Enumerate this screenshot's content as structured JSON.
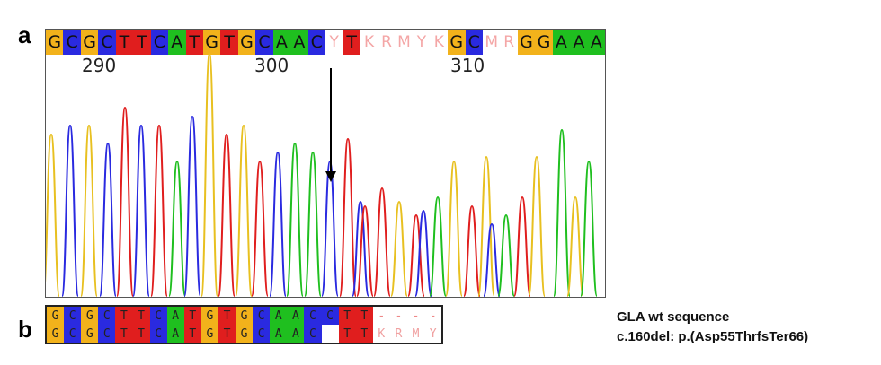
{
  "panels": {
    "a": "a",
    "b": "b"
  },
  "base_colors": {
    "G": "#f2b21b",
    "C": "#2a2ae0",
    "T": "#e01e1e",
    "A": "#1fbf1f"
  },
  "base_calls": [
    "G",
    "C",
    "G",
    "C",
    "T",
    "T",
    "C",
    "A",
    "T",
    "G",
    "T",
    "G",
    "C",
    "A",
    "A",
    "C",
    "Y",
    "T",
    "K",
    "R",
    "M",
    "Y",
    "K",
    "G",
    "C",
    "M",
    "R",
    "G",
    "G",
    "A",
    "A",
    "A"
  ],
  "position_labels": [
    "290",
    "300",
    "310"
  ],
  "sequence_rows": [
    {
      "cells": [
        "G",
        "C",
        "G",
        "C",
        "T",
        "T",
        "C",
        "A",
        "T",
        "G",
        "T",
        "G",
        "C",
        "A",
        "A",
        "C",
        "C",
        "T",
        "T",
        "-",
        "-",
        "-",
        "-"
      ]
    },
    {
      "cells": [
        "G",
        "C",
        "G",
        "C",
        "T",
        "T",
        "C",
        "A",
        "T",
        "G",
        "T",
        "G",
        "C",
        "A",
        "A",
        "C",
        "",
        "T",
        "T",
        "K",
        "R",
        "M",
        "Y"
      ]
    }
  ],
  "legend": {
    "line1": "GLA wt sequence",
    "line2": "c.160del: p.(Asp55ThrfsTer66)"
  }
}
